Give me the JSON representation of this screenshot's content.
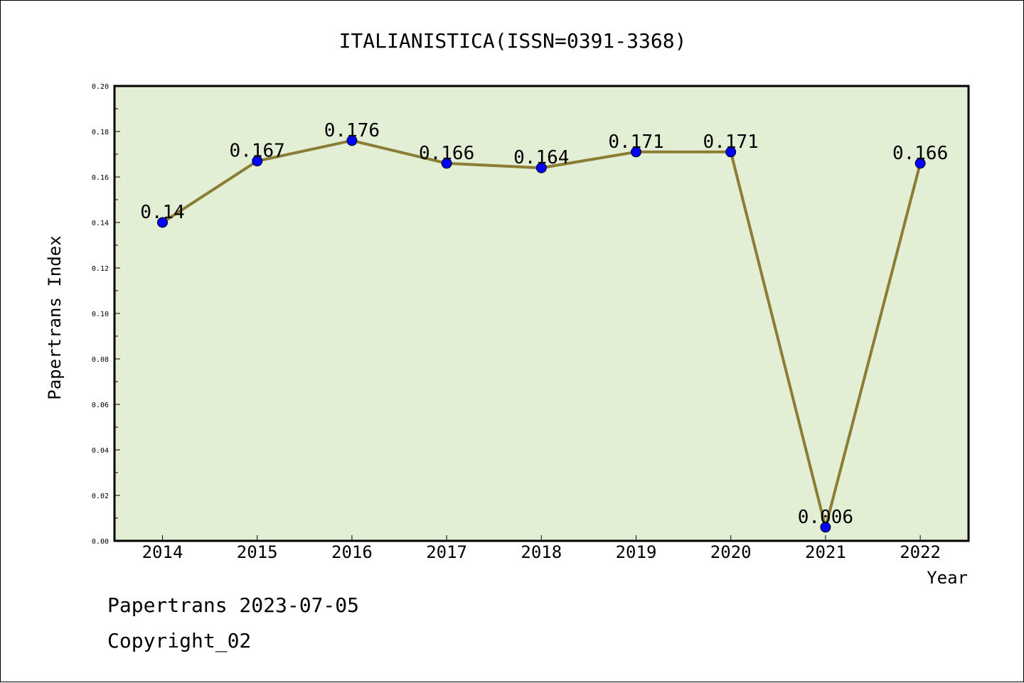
{
  "chart_data": {
    "type": "line",
    "title": "ITALIANISTICA(ISSN=0391-3368)",
    "xlabel": "Year",
    "ylabel": "Papertrans Index",
    "categories": [
      "2014",
      "2015",
      "2016",
      "2017",
      "2018",
      "2019",
      "2020",
      "2021",
      "2022"
    ],
    "series": [
      {
        "name": "Papertrans Index",
        "values": [
          0.14,
          0.167,
          0.176,
          0.166,
          0.164,
          0.171,
          0.171,
          0.006,
          0.166
        ],
        "labels": [
          "0.14",
          "0.167",
          "0.176",
          "0.166",
          "0.164",
          "0.171",
          "0.171",
          "0.006",
          "0.166"
        ]
      }
    ],
    "ylim": [
      0,
      0.2
    ],
    "yticks": [
      "0.00",
      "0.02",
      "0.04",
      "0.06",
      "0.08",
      "0.10",
      "0.12",
      "0.14",
      "0.16",
      "0.18",
      "0.20"
    ],
    "colors": {
      "plot_background": "#e2efd5",
      "line": "#8b7d35",
      "marker": "#0000ff"
    },
    "grid": false
  },
  "footer": {
    "date_line": "Papertrans 2023-07-05",
    "copyright": "Copyright_02"
  }
}
